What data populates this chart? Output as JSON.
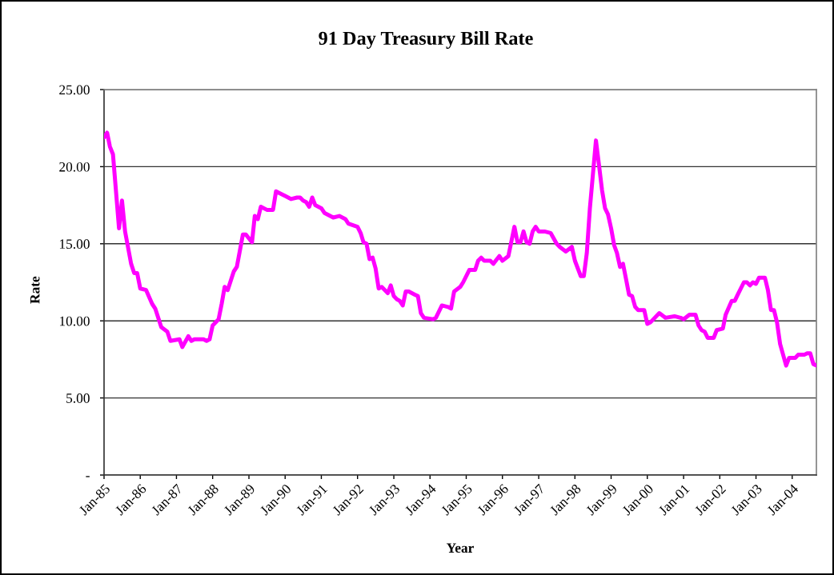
{
  "chart_data": {
    "type": "line",
    "title": "91 Day Treasury Bill Rate",
    "xlabel": "Year",
    "ylabel": "Rate",
    "x": [
      "1985-01",
      "1985-02",
      "1985-03",
      "1985-04",
      "1985-06",
      "1985-07",
      "1985-08",
      "1985-10",
      "1985-11",
      "1985-12",
      "1986-01",
      "1986-03",
      "1986-05",
      "1986-06",
      "1986-08",
      "1986-10",
      "1986-11",
      "1987-02",
      "1987-03",
      "1987-05",
      "1987-06",
      "1987-07",
      "1987-10",
      "1987-11",
      "1987-12",
      "1988-01",
      "1988-03",
      "1988-04",
      "1988-05",
      "1988-06",
      "1988-08",
      "1988-09",
      "1988-11",
      "1988-12",
      "1989-02",
      "1989-03",
      "1989-04",
      "1989-05",
      "1989-07",
      "1989-09",
      "1989-10",
      "1989-11",
      "1990-01",
      "1990-02",
      "1990-03",
      "1990-05",
      "1990-06",
      "1990-07",
      "1990-08",
      "1990-09",
      "1990-10",
      "1990-11",
      "1991-01",
      "1991-02",
      "1991-05",
      "1991-07",
      "1991-09",
      "1991-10",
      "1992-01",
      "1992-02",
      "1992-03",
      "1992-04",
      "1992-05",
      "1992-06",
      "1992-07",
      "1992-08",
      "1992-09",
      "1992-11",
      "1992-12",
      "1993-01",
      "1993-02",
      "1993-03",
      "1993-04",
      "1993-05",
      "1993-06",
      "1993-08",
      "1993-09",
      "1993-10",
      "1993-11",
      "1994-02",
      "1994-03",
      "1994-05",
      "1994-07",
      "1994-08",
      "1994-09",
      "1994-11",
      "1994-12",
      "1995-02",
      "1995-04",
      "1995-05",
      "1995-06",
      "1995-07",
      "1995-09",
      "1995-10",
      "1995-12",
      "1996-01",
      "1996-03",
      "1996-05",
      "1996-06",
      "1996-07",
      "1996-08",
      "1996-09",
      "1996-10",
      "1996-11",
      "1996-12",
      "1997-01",
      "1997-03",
      "1997-05",
      "1997-07",
      "1997-08",
      "1997-10",
      "1997-12",
      "1998-01",
      "1998-03",
      "1998-04",
      "1998-05",
      "1998-06",
      "1998-08",
      "1998-09",
      "1998-10",
      "1998-11",
      "1998-12",
      "1999-01",
      "1999-02",
      "1999-03",
      "1999-04",
      "1999-05",
      "1999-06",
      "1999-07",
      "1999-08",
      "1999-09",
      "1999-10",
      "1999-12",
      "2000-01",
      "2000-02",
      "2000-05",
      "2000-07",
      "2000-10",
      "2000-12",
      "2001-01",
      "2001-03",
      "2001-05",
      "2001-06",
      "2001-07",
      "2001-08",
      "2001-09",
      "2001-11",
      "2001-12",
      "2002-02",
      "2002-03",
      "2002-05",
      "2002-06",
      "2002-07",
      "2002-09",
      "2002-10",
      "2002-11",
      "2002-12",
      "2003-01",
      "2003-02",
      "2003-04",
      "2003-05",
      "2003-06",
      "2003-07",
      "2003-08",
      "2003-09",
      "2003-11",
      "2003-12",
      "2004-02",
      "2004-03",
      "2004-05",
      "2004-06",
      "2004-07",
      "2004-08",
      "2004-09"
    ],
    "series": [
      {
        "color": "#ff00ff",
        "values": [
          21.9,
          22.2,
          21.3,
          20.8,
          16.0,
          17.8,
          15.8,
          13.7,
          13.1,
          13.1,
          12.1,
          12.0,
          11.1,
          10.8,
          9.6,
          9.3,
          8.7,
          8.8,
          8.3,
          9.0,
          8.7,
          8.8,
          8.8,
          8.7,
          8.8,
          9.7,
          10.1,
          11.1,
          12.2,
          12.0,
          13.2,
          13.5,
          15.6,
          15.6,
          15.1,
          16.8,
          16.6,
          17.4,
          17.2,
          17.2,
          18.4,
          18.3,
          18.1,
          18.0,
          17.9,
          18.0,
          18.0,
          17.8,
          17.7,
          17.4,
          18.0,
          17.5,
          17.3,
          17.0,
          16.7,
          16.8,
          16.6,
          16.3,
          16.1,
          15.7,
          15.1,
          15.0,
          14.0,
          14.1,
          13.4,
          12.1,
          12.2,
          11.8,
          12.3,
          11.6,
          11.4,
          11.3,
          11.0,
          11.9,
          11.9,
          11.7,
          11.6,
          10.5,
          10.2,
          10.1,
          10.2,
          11.0,
          10.9,
          10.8,
          11.9,
          12.2,
          12.5,
          13.3,
          13.3,
          13.9,
          14.1,
          13.9,
          13.9,
          13.7,
          14.2,
          13.9,
          14.2,
          16.1,
          15.1,
          15.1,
          15.8,
          15.1,
          15.0,
          15.8,
          16.1,
          15.8,
          15.8,
          15.7,
          15.0,
          14.8,
          14.5,
          14.8,
          13.9,
          12.9,
          12.9,
          14.4,
          17.3,
          21.7,
          20.1,
          18.5,
          17.3,
          16.9,
          16.0,
          14.9,
          14.4,
          13.5,
          13.7,
          12.7,
          11.7,
          11.6,
          10.9,
          10.7,
          10.7,
          9.8,
          9.9,
          10.5,
          10.2,
          10.3,
          10.2,
          10.1,
          10.4,
          10.4,
          9.7,
          9.4,
          9.3,
          8.9,
          8.9,
          9.4,
          9.5,
          10.4,
          11.3,
          11.3,
          11.7,
          12.5,
          12.5,
          12.3,
          12.5,
          12.4,
          12.8,
          12.8,
          12.0,
          10.7,
          10.7,
          9.9,
          8.5,
          7.1,
          7.6,
          7.6,
          7.8,
          7.8,
          7.9,
          7.9,
          7.2,
          7.1
        ]
      }
    ],
    "xlim": [
      "1985-01",
      "2004-09"
    ],
    "xticks": [
      {
        "value": "1985-01",
        "label": "Jan-85"
      },
      {
        "value": "1986-01",
        "label": "Jan-86"
      },
      {
        "value": "1987-01",
        "label": "Jan-87"
      },
      {
        "value": "1988-01",
        "label": "Jan-88"
      },
      {
        "value": "1989-01",
        "label": "Jan-89"
      },
      {
        "value": "1990-01",
        "label": "Jan-90"
      },
      {
        "value": "1991-01",
        "label": "Jan-91"
      },
      {
        "value": "1992-01",
        "label": "Jan-92"
      },
      {
        "value": "1993-01",
        "label": "Jan-93"
      },
      {
        "value": "1994-01",
        "label": "Jan-94"
      },
      {
        "value": "1995-01",
        "label": "Jan-95"
      },
      {
        "value": "1996-01",
        "label": "Jan-96"
      },
      {
        "value": "1997-01",
        "label": "Jan-97"
      },
      {
        "value": "1998-01",
        "label": "Jan-98"
      },
      {
        "value": "1999-01",
        "label": "Jan-99"
      },
      {
        "value": "2000-01",
        "label": "Jan-00"
      },
      {
        "value": "2001-01",
        "label": "Jan-01"
      },
      {
        "value": "2002-01",
        "label": "Jan-02"
      },
      {
        "value": "2003-01",
        "label": "Jan-03"
      },
      {
        "value": "2004-01",
        "label": "Jan-04"
      }
    ],
    "ylim": [
      0,
      25
    ],
    "yticks": [
      {
        "value": 0,
        "label": "-"
      },
      {
        "value": 5,
        "label": "5.00"
      },
      {
        "value": 10,
        "label": "10.00"
      },
      {
        "value": 15,
        "label": "15.00"
      },
      {
        "value": 20,
        "label": "20.00"
      },
      {
        "value": 25,
        "label": "25.00"
      }
    ],
    "grid": "y"
  }
}
